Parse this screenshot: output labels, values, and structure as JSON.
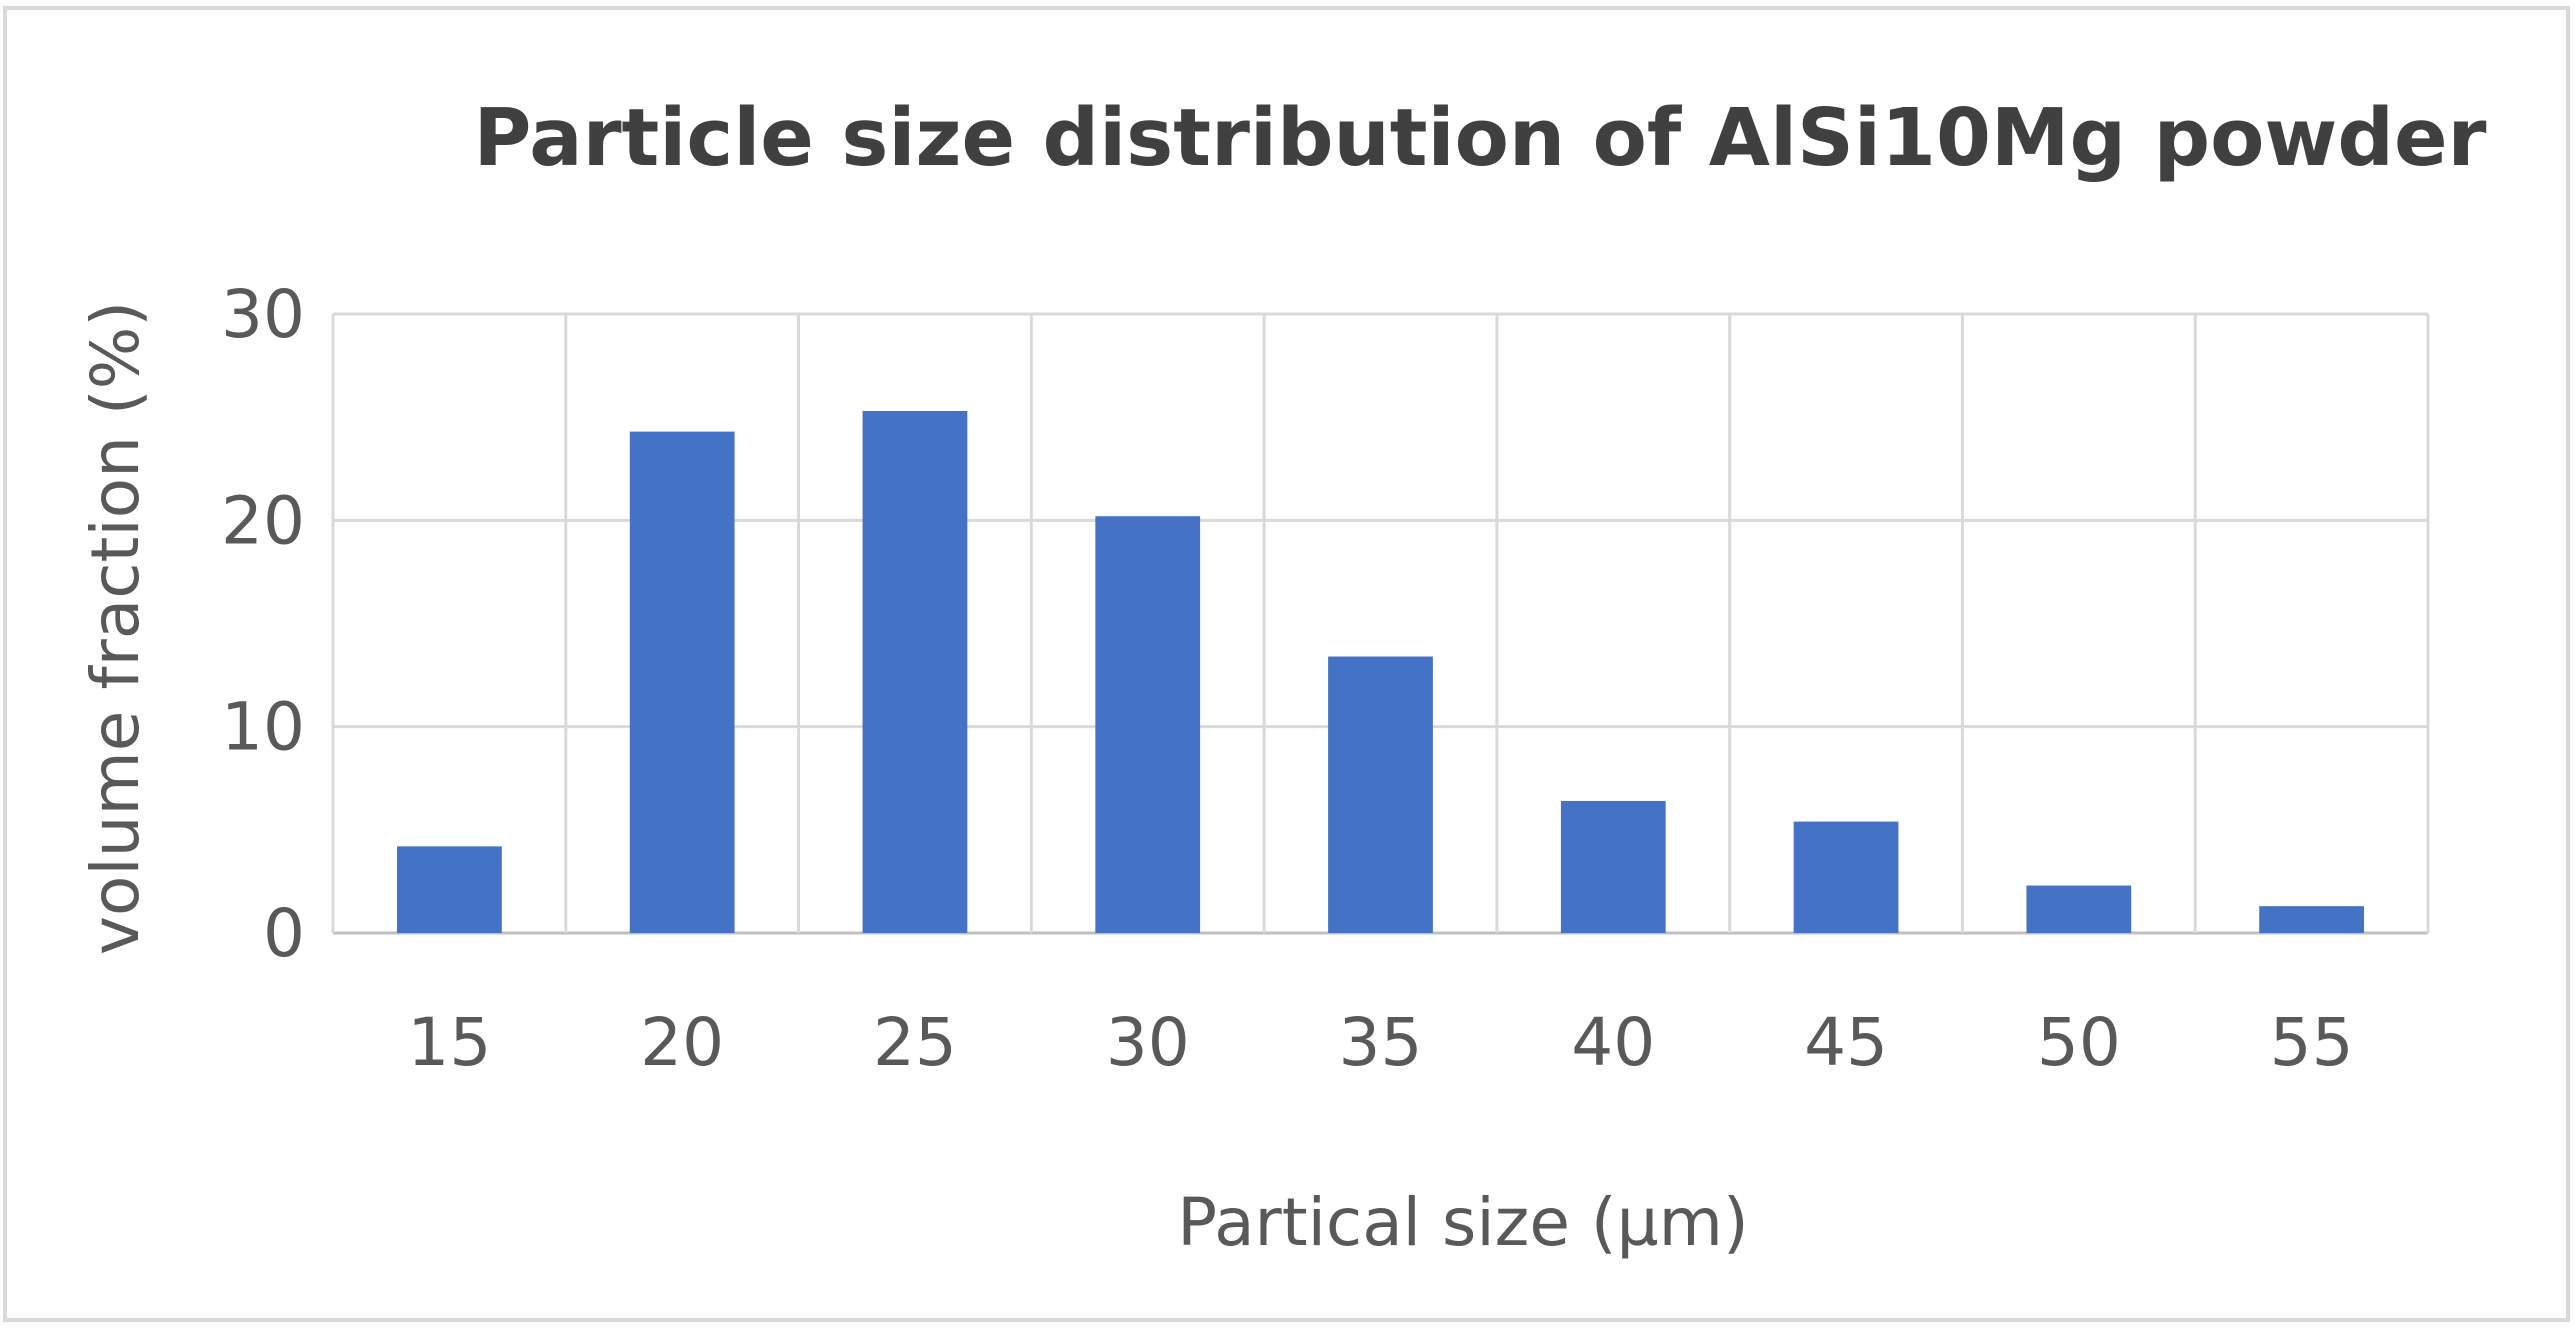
{
  "chart_data": {
    "type": "bar",
    "title": "Particle size distribution of AlSi10Mg powder",
    "xlabel": "Partical size (µm)",
    "ylabel": "volume fraction (%)",
    "categories": [
      "15",
      "20",
      "25",
      "30",
      "35",
      "40",
      "45",
      "50",
      "55"
    ],
    "series": [
      {
        "values": [
          4.2,
          24.3,
          25.3,
          20.2,
          13.4,
          6.4,
          5.4,
          2.3,
          1.3
        ],
        "color": "#4472C4"
      }
    ],
    "ylim": [
      0,
      30
    ],
    "yticks": [
      0,
      10,
      20,
      30
    ],
    "grid": true,
    "legend": "none"
  }
}
